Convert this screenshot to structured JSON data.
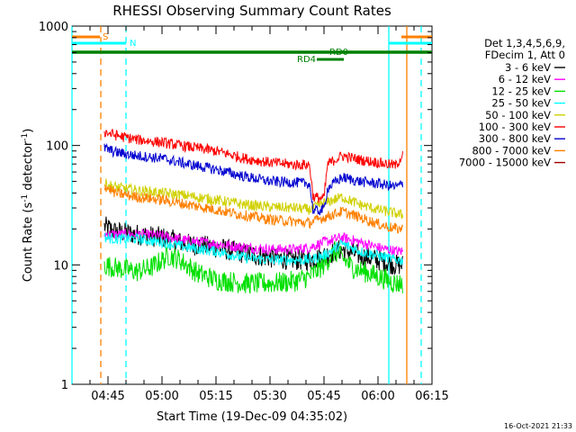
{
  "chart_data": {
    "type": "line",
    "title": "RHESSI Observing Summary Count Rates",
    "xlabel": "Start Time (19-Dec-09 04:35:02)",
    "ylabel_main": "Count Rate (s",
    "ylabel_sup1": "-1",
    "ylabel_mid": " detector",
    "ylabel_sup2": "-1",
    "ylabel_end": ")",
    "yscale": "log",
    "ylim": [
      1,
      1000
    ],
    "xlim_minutes": [
      0,
      100
    ],
    "y_ticks": [
      {
        "value": 1,
        "label": "1"
      },
      {
        "value": 10,
        "label": "10"
      },
      {
        "value": 100,
        "label": "100"
      },
      {
        "value": 1000,
        "label": "1000"
      }
    ],
    "x_ticks": [
      {
        "minute": 10,
        "label": "04:45"
      },
      {
        "minute": 25,
        "label": "05:00"
      },
      {
        "minute": 40,
        "label": "05:15"
      },
      {
        "minute": 55,
        "label": "05:30"
      },
      {
        "minute": 70,
        "label": "05:45"
      },
      {
        "minute": 85,
        "label": "06:00"
      },
      {
        "minute": 100,
        "label": "06:15"
      }
    ],
    "legend_header": [
      "Det 1,3,4,5,6,9,",
      "FDecim 1, Att 0"
    ],
    "series": [
      {
        "name": "3 - 6 keV",
        "color": "#000000",
        "points": [
          [
            9,
            21
          ],
          [
            12,
            19
          ],
          [
            18,
            18
          ],
          [
            25,
            17
          ],
          [
            32,
            15
          ],
          [
            40,
            14
          ],
          [
            48,
            12.5
          ],
          [
            55,
            11.5
          ],
          [
            62,
            11
          ],
          [
            66,
            11
          ],
          [
            70,
            12
          ],
          [
            75,
            13.5
          ],
          [
            80,
            12
          ],
          [
            85,
            11
          ],
          [
            90,
            10
          ],
          [
            92,
            10
          ]
        ]
      },
      {
        "name": "6 - 12 keV",
        "color": "#ff00ff",
        "points": [
          [
            9,
            18
          ],
          [
            12,
            18
          ],
          [
            18,
            18
          ],
          [
            25,
            17.5
          ],
          [
            32,
            16
          ],
          [
            40,
            15
          ],
          [
            48,
            14
          ],
          [
            55,
            13.5
          ],
          [
            62,
            13.5
          ],
          [
            66,
            14
          ],
          [
            70,
            15.5
          ],
          [
            75,
            17
          ],
          [
            80,
            15.5
          ],
          [
            85,
            14
          ],
          [
            90,
            13
          ],
          [
            92,
            13
          ]
        ]
      },
      {
        "name": "12 - 25 keV",
        "color": "#00e000",
        "points": [
          [
            9,
            10
          ],
          [
            12,
            9.5
          ],
          [
            18,
            8.8
          ],
          [
            22,
            9.5
          ],
          [
            27,
            12
          ],
          [
            30,
            11
          ],
          [
            35,
            8.5
          ],
          [
            40,
            7.5
          ],
          [
            48,
            7
          ],
          [
            55,
            7
          ],
          [
            62,
            7.3
          ],
          [
            66,
            8
          ],
          [
            70,
            10
          ],
          [
            73,
            13
          ],
          [
            78,
            9.5
          ],
          [
            85,
            8
          ],
          [
            90,
            7
          ],
          [
            92,
            7
          ]
        ]
      },
      {
        "name": "25 - 50 keV",
        "color": "#00ffff",
        "points": [
          [
            9,
            17
          ],
          [
            12,
            16.5
          ],
          [
            18,
            16.5
          ],
          [
            25,
            15.5
          ],
          [
            32,
            14
          ],
          [
            40,
            13
          ],
          [
            48,
            11.5
          ],
          [
            55,
            11
          ],
          [
            62,
            11
          ],
          [
            66,
            11
          ],
          [
            70,
            12
          ],
          [
            75,
            15
          ],
          [
            80,
            13
          ],
          [
            85,
            12
          ],
          [
            90,
            11
          ],
          [
            92,
            11
          ]
        ]
      },
      {
        "name": "50 - 100 keV",
        "color": "#d0d000",
        "points": [
          [
            9,
            48
          ],
          [
            12,
            45
          ],
          [
            18,
            42
          ],
          [
            25,
            40
          ],
          [
            32,
            38
          ],
          [
            40,
            35
          ],
          [
            48,
            32
          ],
          [
            55,
            30.5
          ],
          [
            62,
            30
          ],
          [
            66,
            29
          ],
          [
            70,
            33
          ],
          [
            75,
            37
          ],
          [
            80,
            32
          ],
          [
            85,
            29
          ],
          [
            90,
            27
          ],
          [
            92,
            26
          ]
        ]
      },
      {
        "name": "100 - 300 keV",
        "color": "#ff0000",
        "points": [
          [
            9,
            130
          ],
          [
            12,
            122
          ],
          [
            18,
            112
          ],
          [
            25,
            106
          ],
          [
            32,
            98
          ],
          [
            40,
            90
          ],
          [
            48,
            78
          ],
          [
            55,
            72
          ],
          [
            62,
            69
          ],
          [
            66,
            69
          ],
          [
            67,
            37
          ],
          [
            70,
            36
          ],
          [
            71,
            70
          ],
          [
            75,
            82
          ],
          [
            80,
            76
          ],
          [
            85,
            72
          ],
          [
            90,
            68
          ],
          [
            92,
            85
          ]
        ]
      },
      {
        "name": "300 - 800 keV",
        "color": "#0000d0",
        "points": [
          [
            9,
            95
          ],
          [
            12,
            88
          ],
          [
            18,
            82
          ],
          [
            25,
            78
          ],
          [
            32,
            70
          ],
          [
            40,
            63
          ],
          [
            48,
            55
          ],
          [
            55,
            50
          ],
          [
            62,
            49
          ],
          [
            66,
            48
          ],
          [
            67,
            28
          ],
          [
            70,
            29
          ],
          [
            71,
            44
          ],
          [
            75,
            54
          ],
          [
            80,
            50
          ],
          [
            85,
            48
          ],
          [
            90,
            45
          ],
          [
            92,
            48
          ]
        ]
      },
      {
        "name": "800 - 7000 keV",
        "color": "#ff8000",
        "points": [
          [
            9,
            46
          ],
          [
            12,
            40
          ],
          [
            18,
            37
          ],
          [
            25,
            35
          ],
          [
            32,
            32
          ],
          [
            40,
            29
          ],
          [
            48,
            26
          ],
          [
            55,
            24
          ],
          [
            62,
            23
          ],
          [
            66,
            22.5
          ],
          [
            70,
            25
          ],
          [
            75,
            28
          ],
          [
            80,
            25
          ],
          [
            85,
            22
          ],
          [
            90,
            20
          ],
          [
            92,
            20
          ]
        ]
      },
      {
        "name": "7000 - 15000 keV",
        "color": "#a00000",
        "points": []
      }
    ],
    "annotations": [
      {
        "label": "S",
        "color": "#ff8000",
        "value_minute": 8
      },
      {
        "label": "N",
        "color": "#00ffff",
        "value_minute": 15
      },
      {
        "label": "RD0",
        "color": "#008000",
        "value_minute": 72
      },
      {
        "label": "RD4",
        "color": "#008000",
        "value_minute": 62
      }
    ],
    "markers": [
      {
        "kind": "solid",
        "color": "#00ffff",
        "minute": 0
      },
      {
        "kind": "dashed",
        "color": "#ff8000",
        "minute": 8
      },
      {
        "kind": "dashed",
        "color": "#00ffff",
        "minute": 15
      },
      {
        "kind": "solid",
        "color": "#00ffff",
        "minute": 88
      },
      {
        "kind": "solid",
        "color": "#ff8000",
        "minute": 93
      },
      {
        "kind": "dashed",
        "color": "#00ffff",
        "minute": 97
      }
    ],
    "footer_date": "16-Oct-2021 21:33"
  }
}
